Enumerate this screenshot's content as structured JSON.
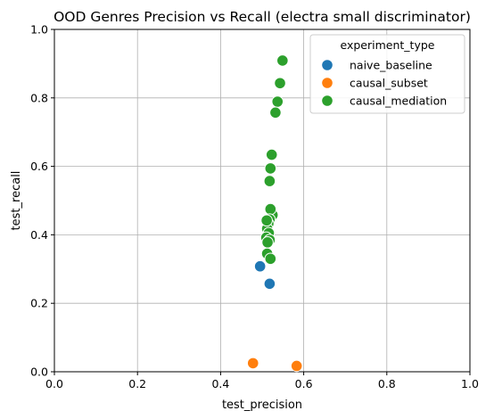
{
  "chart_data": {
    "type": "scatter",
    "title": "OOD Genres Precision vs Recall (electra small discriminator)",
    "xlabel": "test_precision",
    "ylabel": "test_recall",
    "xlim": [
      0.0,
      1.0
    ],
    "ylim": [
      0.0,
      1.0
    ],
    "xticks": [
      "0.0",
      "0.2",
      "0.4",
      "0.6",
      "0.8",
      "1.0"
    ],
    "yticks": [
      "0.0",
      "0.2",
      "0.4",
      "0.6",
      "0.8",
      "1.0"
    ],
    "grid": true,
    "legend": {
      "title": "experiment_type",
      "placement": "top-right"
    },
    "series": [
      {
        "name": "naive_baseline",
        "color": "#1f77b4",
        "points": [
          [
            0.495,
            0.308
          ],
          [
            0.518,
            0.257
          ]
        ]
      },
      {
        "name": "causal_subset",
        "color": "#ff7f0e",
        "points": [
          [
            0.478,
            0.025
          ],
          [
            0.583,
            0.017
          ]
        ]
      },
      {
        "name": "causal_mediation",
        "color": "#2ca02c",
        "points": [
          [
            0.549,
            0.909
          ],
          [
            0.543,
            0.843
          ],
          [
            0.537,
            0.789
          ],
          [
            0.532,
            0.757
          ],
          [
            0.523,
            0.634
          ],
          [
            0.52,
            0.594
          ],
          [
            0.518,
            0.557
          ],
          [
            0.525,
            0.458
          ],
          [
            0.52,
            0.475
          ],
          [
            0.518,
            0.445
          ],
          [
            0.515,
            0.432
          ],
          [
            0.512,
            0.418
          ],
          [
            0.516,
            0.405
          ],
          [
            0.51,
            0.392
          ],
          [
            0.518,
            0.385
          ],
          [
            0.513,
            0.378
          ],
          [
            0.511,
            0.442
          ],
          [
            0.512,
            0.345
          ],
          [
            0.52,
            0.33
          ]
        ]
      }
    ]
  }
}
